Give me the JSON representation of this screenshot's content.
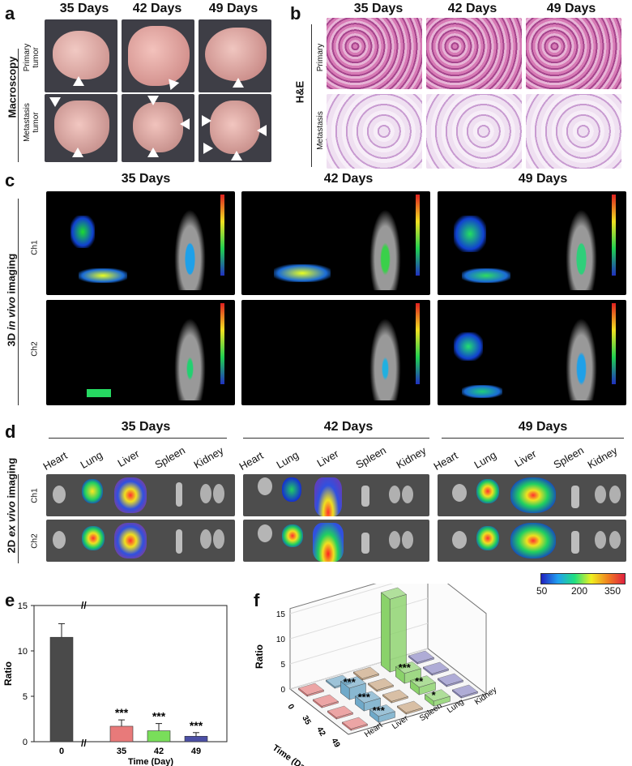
{
  "panel_labels": {
    "a": "a",
    "b": "b",
    "c": "c",
    "d": "d",
    "e": "e",
    "f": "f"
  },
  "days": [
    "35 Days",
    "42 Days",
    "49 Days"
  ],
  "panel_a": {
    "side_label": "Macroscopy",
    "row1": "Primary\ntumor",
    "row2": "Metastasis\ntumor"
  },
  "panel_b": {
    "side_label": "H&E",
    "row1": "Primary\ntumor",
    "row2": "Metastasis\ntumor"
  },
  "panel_c": {
    "side_label_pre": "3D ",
    "side_label_it": "in vivo",
    "side_label_post": " imaging",
    "row1": "Ch1",
    "row2": "Ch2"
  },
  "panel_d": {
    "side_label_pre": "2D ",
    "side_label_it": "ex vivo",
    "side_label_post": " imaging",
    "row1": "Ch1",
    "row2": "Ch2",
    "organs": [
      "Heart",
      "Lung",
      "Liver",
      "Spleen",
      "Kidney"
    ],
    "colorbar_ticks": [
      "50",
      "200",
      "350"
    ]
  },
  "colors": {
    "bar0": "#4a4a4a",
    "bar35": "#e87a7a",
    "bar42": "#79de5a",
    "bar49": "#4b4fa5",
    "sig": "***"
  },
  "chart_data": [
    {
      "type": "bar",
      "categories": [
        "0",
        "35",
        "42",
        "49"
      ],
      "values": [
        11.5,
        1.7,
        1.2,
        0.6
      ],
      "errors": [
        1.5,
        0.7,
        0.8,
        0.4
      ],
      "annotations": [
        "",
        "***",
        "***",
        "***"
      ],
      "xlabel": "Time (Day)",
      "ylabel": "Ratio",
      "ylim": [
        0,
        15
      ],
      "yticks": [
        "0",
        "5",
        "10",
        "15"
      ]
    },
    {
      "type": "bar",
      "title": "",
      "xlabel": "Time (Day)",
      "ylabel": "Ratio",
      "zlabel": "",
      "time_ticks": [
        "0",
        "35",
        "42",
        "49"
      ],
      "organ_ticks": [
        "Heart",
        "Liver",
        "Spleen",
        "Lung",
        "Kidney"
      ],
      "zticks": [
        "0",
        "5",
        "10",
        "15"
      ],
      "bars": [
        {
          "time": "0",
          "organ": "Lung",
          "value": 14.5
        },
        {
          "time": "35",
          "organ": "Liver",
          "value": 2.3,
          "annotation": "***"
        },
        {
          "time": "42",
          "organ": "Liver",
          "value": 1.6,
          "annotation": "***"
        },
        {
          "time": "49",
          "organ": "Liver",
          "value": 1.2,
          "annotation": "***"
        },
        {
          "time": "35",
          "organ": "Lung",
          "value": 2.0,
          "annotation": "***"
        },
        {
          "time": "42",
          "organ": "Lung",
          "value": 1.5,
          "annotation": "**"
        },
        {
          "time": "49",
          "organ": "Lung",
          "value": 1.0,
          "annotation": "*"
        }
      ]
    }
  ]
}
